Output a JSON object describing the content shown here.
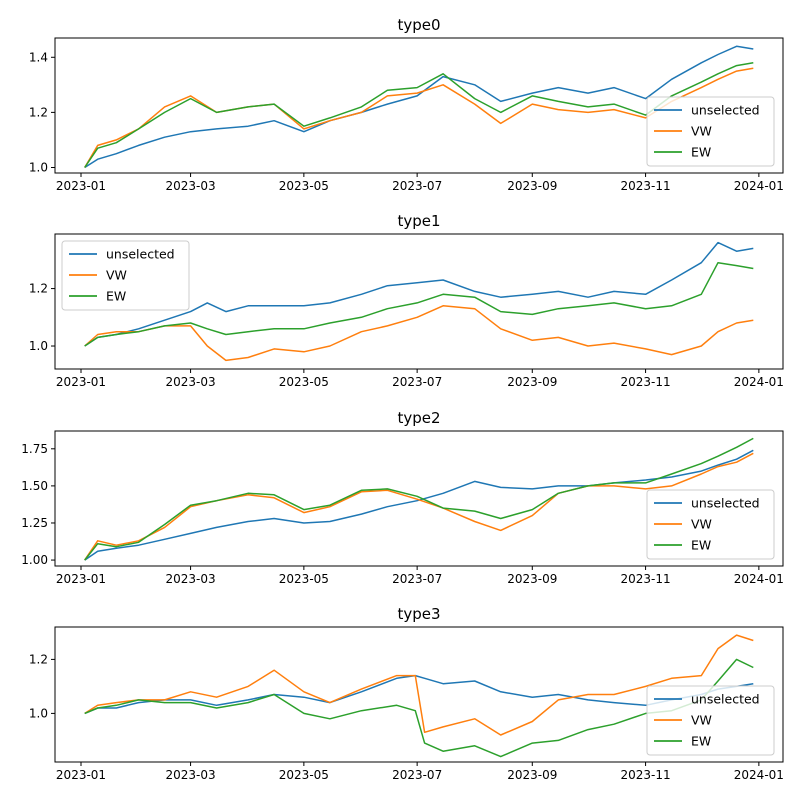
{
  "figure": {
    "background": "#ffffff"
  },
  "chart_data": [
    {
      "type": "line",
      "title": "type0",
      "xlabel": "",
      "ylabel": "",
      "x_range": [
        "2022-12-18",
        "2024-01-14"
      ],
      "ylim": [
        0.98,
        1.47
      ],
      "x_ticks": [
        "2023-01",
        "2023-03",
        "2023-05",
        "2023-07",
        "2023-09",
        "2023-11",
        "2024-01"
      ],
      "y_ticks": [
        1.0,
        1.2,
        1.4
      ],
      "y_tick_labels": [
        "1.0",
        "1.2",
        "1.4"
      ],
      "legend": {
        "placement": "bottom-right"
      },
      "x": [
        "2023-01-03",
        "2023-01-10",
        "2023-01-20",
        "2023-02-01",
        "2023-02-15",
        "2023-03-01",
        "2023-03-15",
        "2023-04-01",
        "2023-04-15",
        "2023-05-01",
        "2023-05-15",
        "2023-06-01",
        "2023-06-15",
        "2023-07-01",
        "2023-07-15",
        "2023-08-01",
        "2023-08-15",
        "2023-09-01",
        "2023-09-15",
        "2023-10-01",
        "2023-10-15",
        "2023-11-01",
        "2023-11-15",
        "2023-12-01",
        "2023-12-10",
        "2023-12-20",
        "2023-12-29"
      ],
      "series": [
        {
          "name": "unselected",
          "color": "#1f77b4",
          "values": [
            1.0,
            1.03,
            1.05,
            1.08,
            1.11,
            1.13,
            1.14,
            1.15,
            1.17,
            1.13,
            1.17,
            1.2,
            1.23,
            1.26,
            1.33,
            1.3,
            1.24,
            1.27,
            1.29,
            1.27,
            1.29,
            1.25,
            1.32,
            1.38,
            1.41,
            1.44,
            1.43
          ]
        },
        {
          "name": "VW",
          "color": "#ff7f0e",
          "values": [
            1.0,
            1.08,
            1.1,
            1.14,
            1.22,
            1.26,
            1.2,
            1.22,
            1.23,
            1.14,
            1.17,
            1.2,
            1.26,
            1.27,
            1.3,
            1.23,
            1.16,
            1.23,
            1.21,
            1.2,
            1.21,
            1.18,
            1.24,
            1.29,
            1.32,
            1.35,
            1.36
          ]
        },
        {
          "name": "EW",
          "color": "#2ca02c",
          "values": [
            1.0,
            1.07,
            1.09,
            1.14,
            1.2,
            1.25,
            1.2,
            1.22,
            1.23,
            1.15,
            1.18,
            1.22,
            1.28,
            1.29,
            1.34,
            1.25,
            1.2,
            1.26,
            1.24,
            1.22,
            1.23,
            1.19,
            1.26,
            1.31,
            1.34,
            1.37,
            1.38
          ]
        }
      ]
    },
    {
      "type": "line",
      "title": "type1",
      "xlabel": "",
      "ylabel": "",
      "x_range": [
        "2022-12-18",
        "2024-01-14"
      ],
      "ylim": [
        0.92,
        1.39
      ],
      "x_ticks": [
        "2023-01",
        "2023-03",
        "2023-05",
        "2023-07",
        "2023-09",
        "2023-11",
        "2024-01"
      ],
      "y_ticks": [
        1.0,
        1.2
      ],
      "y_tick_labels": [
        "1.0",
        "1.2"
      ],
      "legend": {
        "placement": "top-left"
      },
      "x": [
        "2023-01-03",
        "2023-01-10",
        "2023-01-20",
        "2023-02-01",
        "2023-02-15",
        "2023-03-01",
        "2023-03-10",
        "2023-03-20",
        "2023-04-01",
        "2023-04-15",
        "2023-05-01",
        "2023-05-15",
        "2023-06-01",
        "2023-06-15",
        "2023-07-01",
        "2023-07-15",
        "2023-08-01",
        "2023-08-15",
        "2023-09-01",
        "2023-09-15",
        "2023-10-01",
        "2023-10-15",
        "2023-11-01",
        "2023-11-15",
        "2023-12-01",
        "2023-12-10",
        "2023-12-20",
        "2023-12-29"
      ],
      "series": [
        {
          "name": "unselected",
          "color": "#1f77b4",
          "values": [
            1.0,
            1.03,
            1.04,
            1.06,
            1.09,
            1.12,
            1.15,
            1.12,
            1.14,
            1.14,
            1.14,
            1.15,
            1.18,
            1.21,
            1.22,
            1.23,
            1.19,
            1.17,
            1.18,
            1.19,
            1.17,
            1.19,
            1.18,
            1.23,
            1.29,
            1.36,
            1.33,
            1.34
          ]
        },
        {
          "name": "VW",
          "color": "#ff7f0e",
          "values": [
            1.0,
            1.04,
            1.05,
            1.05,
            1.07,
            1.07,
            1.0,
            0.95,
            0.96,
            0.99,
            0.98,
            1.0,
            1.05,
            1.07,
            1.1,
            1.14,
            1.13,
            1.06,
            1.02,
            1.03,
            1.0,
            1.01,
            0.99,
            0.97,
            1.0,
            1.05,
            1.08,
            1.09
          ]
        },
        {
          "name": "EW",
          "color": "#2ca02c",
          "values": [
            1.0,
            1.03,
            1.04,
            1.05,
            1.07,
            1.08,
            1.06,
            1.04,
            1.05,
            1.06,
            1.06,
            1.08,
            1.1,
            1.13,
            1.15,
            1.18,
            1.17,
            1.12,
            1.11,
            1.13,
            1.14,
            1.15,
            1.13,
            1.14,
            1.18,
            1.29,
            1.28,
            1.27
          ]
        }
      ]
    },
    {
      "type": "line",
      "title": "type2",
      "xlabel": "",
      "ylabel": "",
      "x_range": [
        "2022-12-18",
        "2024-01-14"
      ],
      "ylim": [
        0.96,
        1.87
      ],
      "x_ticks": [
        "2023-01",
        "2023-03",
        "2023-05",
        "2023-07",
        "2023-09",
        "2023-11",
        "2024-01"
      ],
      "y_ticks": [
        1.0,
        1.25,
        1.5,
        1.75
      ],
      "y_tick_labels": [
        "1.00",
        "1.25",
        "1.50",
        "1.75"
      ],
      "legend": {
        "placement": "bottom-right"
      },
      "x": [
        "2023-01-03",
        "2023-01-10",
        "2023-01-20",
        "2023-02-01",
        "2023-02-15",
        "2023-03-01",
        "2023-03-15",
        "2023-04-01",
        "2023-04-15",
        "2023-05-01",
        "2023-05-15",
        "2023-06-01",
        "2023-06-15",
        "2023-07-01",
        "2023-07-15",
        "2023-08-01",
        "2023-08-15",
        "2023-09-01",
        "2023-09-15",
        "2023-10-01",
        "2023-10-15",
        "2023-11-01",
        "2023-11-15",
        "2023-12-01",
        "2023-12-10",
        "2023-12-20",
        "2023-12-29"
      ],
      "series": [
        {
          "name": "unselected",
          "color": "#1f77b4",
          "values": [
            1.0,
            1.06,
            1.08,
            1.1,
            1.14,
            1.18,
            1.22,
            1.26,
            1.28,
            1.25,
            1.26,
            1.31,
            1.36,
            1.4,
            1.45,
            1.53,
            1.49,
            1.48,
            1.5,
            1.5,
            1.52,
            1.54,
            1.56,
            1.6,
            1.64,
            1.68,
            1.74
          ]
        },
        {
          "name": "VW",
          "color": "#ff7f0e",
          "values": [
            1.0,
            1.13,
            1.1,
            1.13,
            1.22,
            1.36,
            1.4,
            1.44,
            1.42,
            1.32,
            1.36,
            1.46,
            1.47,
            1.41,
            1.35,
            1.26,
            1.2,
            1.3,
            1.45,
            1.5,
            1.5,
            1.48,
            1.5,
            1.58,
            1.63,
            1.66,
            1.72
          ]
        },
        {
          "name": "EW",
          "color": "#2ca02c",
          "values": [
            1.0,
            1.11,
            1.09,
            1.12,
            1.24,
            1.37,
            1.4,
            1.45,
            1.44,
            1.34,
            1.37,
            1.47,
            1.48,
            1.43,
            1.35,
            1.33,
            1.28,
            1.34,
            1.45,
            1.5,
            1.52,
            1.52,
            1.58,
            1.65,
            1.7,
            1.76,
            1.82
          ]
        }
      ]
    },
    {
      "type": "line",
      "title": "type3",
      "xlabel": "",
      "ylabel": "",
      "x_range": [
        "2022-12-18",
        "2024-01-14"
      ],
      "ylim": [
        0.82,
        1.32
      ],
      "x_ticks": [
        "2023-01",
        "2023-03",
        "2023-05",
        "2023-07",
        "2023-09",
        "2023-11",
        "2024-01"
      ],
      "y_ticks": [
        1.0,
        1.2
      ],
      "y_tick_labels": [
        "1.0",
        "1.2"
      ],
      "legend": {
        "placement": "bottom-right"
      },
      "x": [
        "2023-01-03",
        "2023-01-10",
        "2023-01-20",
        "2023-02-01",
        "2023-02-15",
        "2023-03-01",
        "2023-03-15",
        "2023-04-01",
        "2023-04-15",
        "2023-05-01",
        "2023-05-15",
        "2023-06-01",
        "2023-06-20",
        "2023-06-30",
        "2023-07-05",
        "2023-07-15",
        "2023-08-01",
        "2023-08-15",
        "2023-09-01",
        "2023-09-15",
        "2023-10-01",
        "2023-10-15",
        "2023-11-01",
        "2023-11-15",
        "2023-12-01",
        "2023-12-10",
        "2023-12-20",
        "2023-12-29"
      ],
      "series": [
        {
          "name": "unselected",
          "color": "#1f77b4",
          "values": [
            1.0,
            1.02,
            1.02,
            1.04,
            1.05,
            1.05,
            1.03,
            1.05,
            1.07,
            1.06,
            1.04,
            1.08,
            1.13,
            1.14,
            1.13,
            1.11,
            1.12,
            1.08,
            1.06,
            1.07,
            1.05,
            1.04,
            1.03,
            1.05,
            1.07,
            1.09,
            1.1,
            1.11
          ]
        },
        {
          "name": "VW",
          "color": "#ff7f0e",
          "values": [
            1.0,
            1.03,
            1.04,
            1.05,
            1.05,
            1.08,
            1.06,
            1.1,
            1.16,
            1.08,
            1.04,
            1.09,
            1.14,
            1.14,
            0.93,
            0.95,
            0.98,
            0.92,
            0.97,
            1.05,
            1.07,
            1.07,
            1.1,
            1.13,
            1.14,
            1.24,
            1.29,
            1.27
          ]
        },
        {
          "name": "EW",
          "color": "#2ca02c",
          "values": [
            1.0,
            1.02,
            1.03,
            1.05,
            1.04,
            1.04,
            1.02,
            1.04,
            1.07,
            1.0,
            0.98,
            1.01,
            1.03,
            1.01,
            0.89,
            0.86,
            0.88,
            0.84,
            0.89,
            0.9,
            0.94,
            0.96,
            1.0,
            1.01,
            1.05,
            1.12,
            1.2,
            1.17
          ]
        }
      ]
    }
  ]
}
